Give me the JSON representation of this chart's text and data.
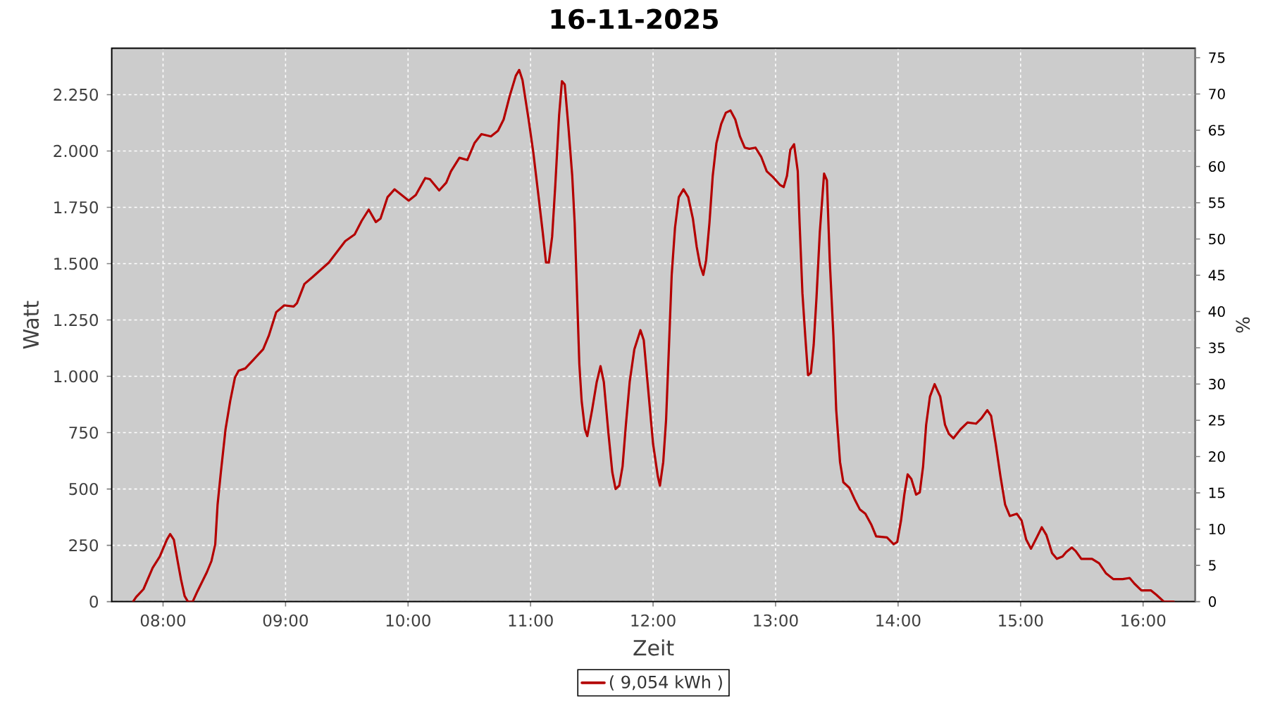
{
  "chart_data": {
    "type": "line",
    "title": "16-11-2025",
    "xlabel": "Zeit",
    "ylabel": "Watt",
    "y2label": "%",
    "xlim": [
      7.581,
      16.425
    ],
    "ylim": [
      0,
      2456
    ],
    "y2lim": [
      0,
      76.3
    ],
    "xticks": [
      {
        "value": 8,
        "label": "08:00"
      },
      {
        "value": 9,
        "label": "09:00"
      },
      {
        "value": 10,
        "label": "10:00"
      },
      {
        "value": 11,
        "label": "11:00"
      },
      {
        "value": 12,
        "label": "12:00"
      },
      {
        "value": 13,
        "label": "13:00"
      },
      {
        "value": 14,
        "label": "14:00"
      },
      {
        "value": 15,
        "label": "15:00"
      },
      {
        "value": 16,
        "label": "16:00"
      }
    ],
    "yticks": [
      0,
      250,
      500,
      750,
      {
        "value": 1000,
        "label": "1.000"
      },
      {
        "value": 1250,
        "label": "1.250"
      },
      {
        "value": 1500,
        "label": "1.500"
      },
      {
        "value": 1750,
        "label": "1.750"
      },
      {
        "value": 2000,
        "label": "2.000"
      },
      {
        "value": 2250,
        "label": "2.250"
      }
    ],
    "y2ticks": [
      0,
      5,
      10,
      15,
      20,
      25,
      30,
      35,
      40,
      45,
      50,
      55,
      60,
      65,
      70,
      75
    ],
    "grid": true,
    "legend": "bottom",
    "x": [
      7.755,
      7.78,
      7.84,
      7.915,
      7.973,
      8.031,
      8.058,
      8.088,
      8.119,
      8.146,
      8.176,
      8.203,
      8.242,
      8.28,
      8.357,
      8.395,
      8.426,
      8.445,
      8.472,
      8.51,
      8.548,
      8.587,
      8.617,
      8.671,
      8.74,
      8.817,
      8.863,
      8.924,
      8.989,
      9.066,
      9.093,
      9.154,
      9.219,
      9.353,
      9.487,
      9.564,
      9.621,
      9.679,
      9.737,
      9.775,
      9.832,
      9.89,
      10.005,
      10.063,
      10.14,
      10.178,
      10.254,
      10.312,
      10.35,
      10.419,
      10.484,
      10.542,
      10.599,
      10.676,
      10.734,
      10.78,
      10.83,
      10.88,
      10.907,
      10.934,
      10.984,
      11.022,
      11.068,
      11.099,
      11.126,
      11.149,
      11.176,
      11.202,
      11.233,
      11.256,
      11.279,
      11.31,
      11.34,
      11.36,
      11.379,
      11.398,
      11.417,
      11.444,
      11.463,
      11.502,
      11.54,
      11.571,
      11.598,
      11.636,
      11.667,
      11.694,
      11.724,
      11.751,
      11.778,
      11.809,
      11.847,
      11.897,
      11.924,
      11.962,
      12.0,
      12.039,
      12.056,
      12.083,
      12.106,
      12.133,
      12.152,
      12.179,
      12.21,
      12.248,
      12.287,
      12.325,
      12.356,
      12.383,
      12.41,
      12.433,
      12.46,
      12.487,
      12.517,
      12.556,
      12.594,
      12.632,
      12.671,
      12.709,
      12.748,
      12.786,
      12.836,
      12.882,
      12.928,
      12.978,
      13.035,
      13.066,
      13.093,
      13.12,
      13.151,
      13.181,
      13.196,
      13.219,
      13.242,
      13.265,
      13.288,
      13.311,
      13.334,
      13.361,
      13.396,
      13.419,
      13.442,
      13.472,
      13.495,
      13.526,
      13.553,
      13.603,
      13.649,
      13.687,
      13.733,
      13.783,
      13.821,
      13.909,
      13.963,
      13.993,
      14.024,
      14.051,
      14.078,
      14.108,
      14.147,
      14.177,
      14.204,
      14.229,
      14.26,
      14.298,
      14.344,
      14.383,
      14.414,
      14.452,
      14.51,
      14.567,
      14.636,
      14.682,
      14.728,
      14.759,
      14.797,
      14.836,
      14.874,
      14.912,
      14.97,
      15.008,
      15.046,
      15.085,
      15.123,
      15.173,
      15.211,
      15.257,
      15.296,
      15.342,
      15.372,
      15.418,
      15.449,
      15.495,
      15.583,
      15.641,
      15.698,
      15.756,
      15.833,
      15.89,
      15.929,
      15.986,
      16.063,
      16.109,
      16.17,
      16.25
    ],
    "series": [
      {
        "name": "( 9,054 kWh )",
        "color": "#b40000",
        "values": [
          0,
          20,
          55,
          150,
          200,
          275,
          300,
          275,
          180,
          100,
          25,
          0,
          0,
          45,
          130,
          180,
          255,
          430,
          575,
          765,
          890,
          995,
          1025,
          1035,
          1075,
          1120,
          1180,
          1285,
          1315,
          1310,
          1325,
          1410,
          1440,
          1505,
          1600,
          1630,
          1690,
          1740,
          1685,
          1700,
          1795,
          1830,
          1780,
          1805,
          1880,
          1875,
          1825,
          1860,
          1910,
          1970,
          1960,
          2035,
          2075,
          2065,
          2090,
          2140,
          2245,
          2335,
          2360,
          2315,
          2140,
          1995,
          1785,
          1640,
          1505,
          1505,
          1620,
          1850,
          2160,
          2310,
          2295,
          2100,
          1890,
          1680,
          1370,
          1055,
          890,
          765,
          735,
          850,
          975,
          1045,
          975,
          745,
          575,
          500,
          515,
          600,
          785,
          975,
          1120,
          1205,
          1160,
          930,
          700,
          555,
          515,
          620,
          805,
          1180,
          1450,
          1660,
          1795,
          1830,
          1795,
          1700,
          1575,
          1495,
          1450,
          1515,
          1680,
          1890,
          2035,
          2120,
          2170,
          2180,
          2140,
          2065,
          2015,
          2010,
          2015,
          1975,
          1910,
          1885,
          1850,
          1840,
          1890,
          2005,
          2030,
          1910,
          1680,
          1370,
          1180,
          1005,
          1015,
          1140,
          1350,
          1640,
          1900,
          1870,
          1515,
          1180,
          850,
          620,
          530,
          505,
          450,
          410,
          390,
          340,
          290,
          285,
          255,
          265,
          360,
          475,
          565,
          545,
          475,
          485,
          600,
          785,
          910,
          965,
          910,
          785,
          745,
          725,
          765,
          795,
          790,
          815,
          850,
          825,
          700,
          555,
          430,
          380,
          390,
          360,
          275,
          235,
          275,
          330,
          295,
          215,
          190,
          200,
          220,
          240,
          225,
          190,
          190,
          170,
          125,
          100,
          100,
          105,
          80,
          50,
          50,
          30,
          0,
          0
        ]
      }
    ]
  }
}
